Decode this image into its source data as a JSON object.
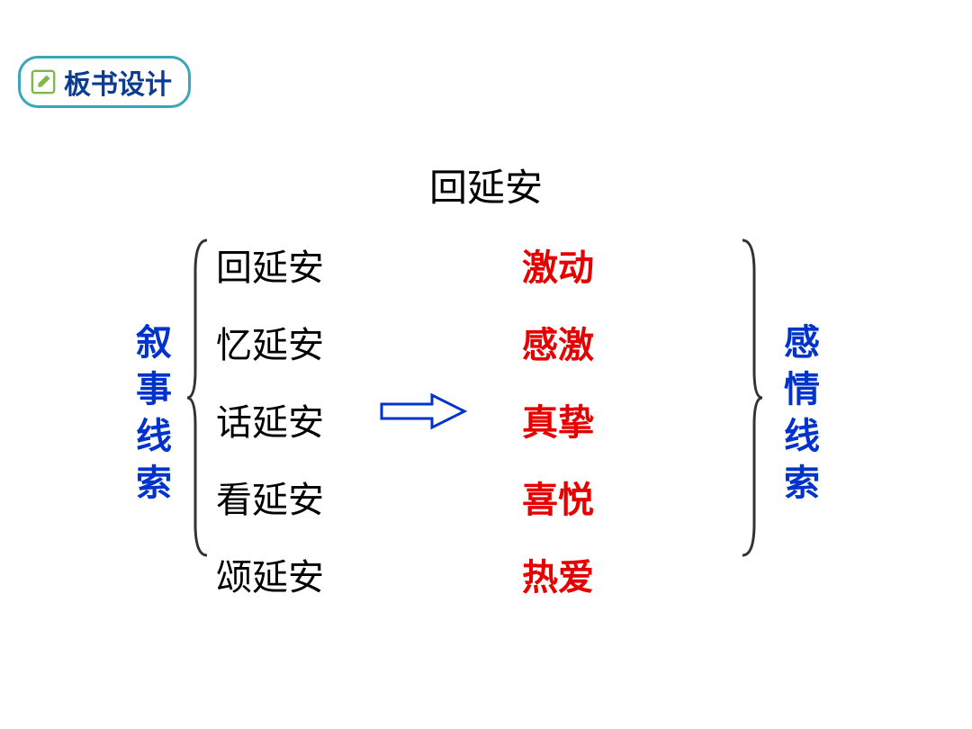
{
  "badge": {
    "label": "板书设计",
    "border_color": "#3aa6b9",
    "text_color": "#0a3d8f",
    "icon_color": "#7fb84a"
  },
  "title": {
    "text": "回延安",
    "color": "#000000"
  },
  "left_side": {
    "label": "叙事线索",
    "color": "#0033cc"
  },
  "right_side": {
    "label": "感情线索",
    "color": "#0033cc"
  },
  "brace_color": "#333333",
  "arrow": {
    "stroke": "#0033cc",
    "fill": "#ffffff"
  },
  "narrative_items": {
    "color": "#000000",
    "items": [
      "回延安",
      "忆延安",
      "话延安",
      "看延安",
      "颂延安"
    ]
  },
  "emotion_items": {
    "color": "#e60000",
    "items": [
      "激动",
      "感激",
      "真挚",
      "喜悦",
      "热爱"
    ]
  },
  "fonts": {
    "title_size": 42,
    "body_size": 40,
    "badge_size": 30
  }
}
